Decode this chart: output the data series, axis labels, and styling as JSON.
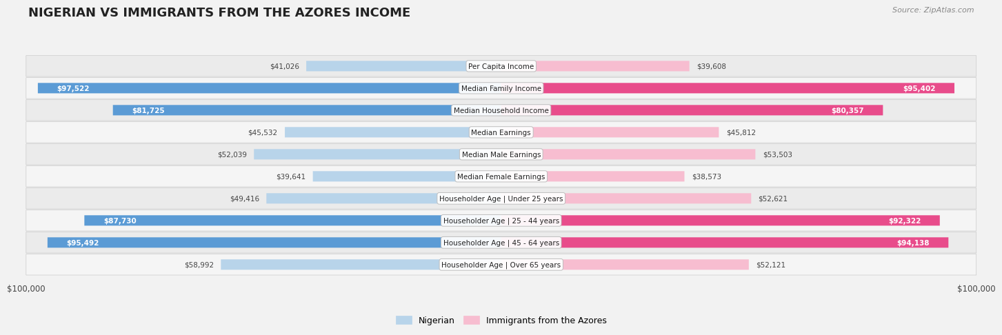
{
  "title": "NIGERIAN VS IMMIGRANTS FROM THE AZORES INCOME",
  "source": "Source: ZipAtlas.com",
  "categories": [
    "Per Capita Income",
    "Median Family Income",
    "Median Household Income",
    "Median Earnings",
    "Median Male Earnings",
    "Median Female Earnings",
    "Householder Age | Under 25 years",
    "Householder Age | 25 - 44 years",
    "Householder Age | 45 - 64 years",
    "Householder Age | Over 65 years"
  ],
  "nigerian_values": [
    41026,
    97522,
    81725,
    45532,
    52039,
    39641,
    49416,
    87730,
    95492,
    58992
  ],
  "azores_values": [
    39608,
    95402,
    80357,
    45812,
    53503,
    38573,
    52621,
    92322,
    94138,
    52121
  ],
  "nigerian_labels": [
    "$41,026",
    "$97,522",
    "$81,725",
    "$45,532",
    "$52,039",
    "$39,641",
    "$49,416",
    "$87,730",
    "$95,492",
    "$58,992"
  ],
  "azores_labels": [
    "$39,608",
    "$95,402",
    "$80,357",
    "$45,812",
    "$53,503",
    "$38,573",
    "$52,621",
    "$92,322",
    "$94,138",
    "$52,121"
  ],
  "max_value": 100000,
  "nigerian_color_light": "#b8d4ea",
  "nigerian_color_dark": "#5b9bd5",
  "azores_color_light": "#f7bdd0",
  "azores_color_dark": "#e84c8b",
  "label_inside_threshold": 65000,
  "bg_color": "#f2f2f2",
  "row_bg_even": "#ebebeb",
  "row_bg_odd": "#f5f5f5",
  "legend_nigerian": "Nigerian",
  "legend_azores": "Immigrants from the Azores",
  "xlabel_left": "$100,000",
  "xlabel_right": "$100,000"
}
